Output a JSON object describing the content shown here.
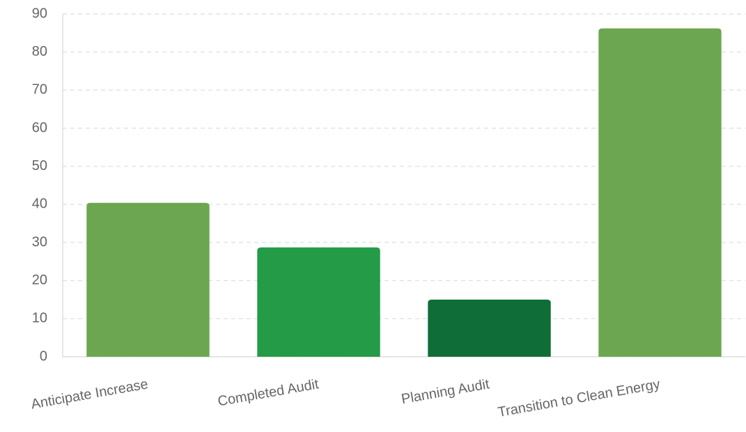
{
  "chart_data": {
    "type": "bar",
    "categories": [
      "Anticipate Increase",
      "Completed Audit",
      "Planning Audit",
      "Transition to Clean Energy"
    ],
    "values": [
      40.4,
      28.7,
      15.0,
      86.2
    ],
    "colors": [
      "#6ca651",
      "#239b47",
      "#0f6e37",
      "#6ca651"
    ],
    "ylim": [
      0,
      90
    ],
    "yticks": [
      0,
      10,
      20,
      30,
      40,
      50,
      60,
      70,
      80,
      90
    ],
    "grid": true
  }
}
